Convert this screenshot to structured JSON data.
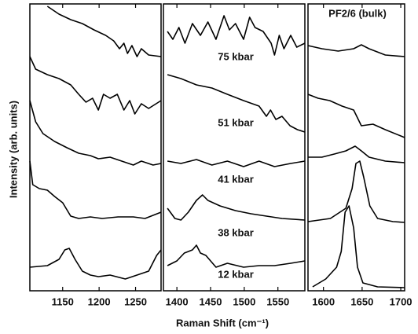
{
  "chart_data": {
    "type": "line",
    "xlabel": "Raman Shift (cm⁻¹)",
    "ylabel": "Intensity (arb. units)",
    "ylim": [
      0,
      365
    ],
    "annotations": [
      "75 kbar",
      "51 kbar",
      "41 kbar",
      "38 kbar",
      "12 kbar",
      "PF2/6 (bulk)"
    ],
    "panels": [
      {
        "xlim": [
          1105,
          1285
        ],
        "xticks": [
          1150,
          1200,
          1250
        ],
        "series": [
          {
            "x": [
              1129,
              1145,
              1161,
              1177,
              1193,
              1209,
              1220,
              1228,
              1234,
              1239,
              1245,
              1252,
              1258,
              1268,
              1285
            ],
            "values": [
              362,
              352,
              345,
              340,
              332,
              325,
              318,
              308,
              315,
              302,
              312,
              298,
              308,
              300,
              298
            ]
          },
          {
            "x": [
              1105,
              1113,
              1129,
              1145,
              1161,
              1172,
              1182,
              1191,
              1199,
              1206,
              1215,
              1225,
              1234,
              1242,
              1249,
              1258,
              1268,
              1285
            ],
            "values": [
              298,
              282,
              275,
              270,
              262,
              250,
              240,
              245,
              230,
              250,
              245,
              250,
              230,
              242,
              225,
              238,
              232,
              242
            ]
          },
          {
            "x": [
              1105,
              1113,
              1123,
              1139,
              1156,
              1172,
              1188,
              1199,
              1215,
              1231,
              1247,
              1258,
              1274,
              1285
            ],
            "values": [
              242,
              215,
              200,
              190,
              182,
              175,
              172,
              168,
              170,
              165,
              160,
              165,
              160,
              162
            ]
          },
          {
            "x": [
              1105,
              1109,
              1118,
              1129,
              1139,
              1150,
              1161,
              1172,
              1188,
              1204,
              1226,
              1247,
              1263,
              1285
            ],
            "values": [
              165,
              135,
              130,
              128,
              120,
              112,
              95,
              92,
              94,
              92,
              94,
              94,
              92,
              100
            ]
          },
          {
            "x": [
              1105,
              1129,
              1145,
              1153,
              1159,
              1167,
              1177,
              1188,
              1199,
              1215,
              1236,
              1252,
              1268,
              1279,
              1285
            ],
            "values": [
              30,
              32,
              40,
              52,
              54,
              40,
              25,
              20,
              18,
              20,
              15,
              20,
              25,
              45,
              52
            ]
          }
        ]
      },
      {
        "xlim": [
          1380,
          1590
        ],
        "xticks": [
          1400,
          1450,
          1500,
          1550
        ],
        "series": [
          {
            "x": [
              1386,
              1394,
              1403,
              1412,
              1423,
              1435,
              1446,
              1458,
              1470,
              1478,
              1487,
              1499,
              1508,
              1516,
              1528,
              1540,
              1545,
              1552,
              1559,
              1569,
              1578,
              1590
            ],
            "values": [
              330,
              320,
              335,
              315,
              340,
              325,
              342,
              320,
              350,
              332,
              340,
              320,
              348,
              335,
              330,
              315,
              300,
              325,
              308,
              325,
              310,
              315
            ]
          },
          {
            "x": [
              1386,
              1406,
              1429,
              1452,
              1475,
              1499,
              1522,
              1533,
              1539,
              1547,
              1556,
              1568,
              1579,
              1590
            ],
            "values": [
              275,
              270,
              262,
              258,
              250,
              242,
              235,
              222,
              230,
              218,
              222,
              210,
              205,
              202
            ]
          },
          {
            "x": [
              1386,
              1406,
              1429,
              1452,
              1475,
              1499,
              1522,
              1545,
              1569,
              1590
            ],
            "values": [
              165,
              162,
              167,
              160,
              165,
              158,
              165,
              158,
              162,
              165
            ]
          },
          {
            "x": [
              1386,
              1397,
              1406,
              1417,
              1429,
              1438,
              1446,
              1464,
              1487,
              1510,
              1533,
              1556,
              1590
            ],
            "values": [
              105,
              92,
              90,
              100,
              115,
              122,
              115,
              108,
              102,
              98,
              95,
              92,
              90
            ]
          },
          {
            "x": [
              1386,
              1400,
              1411,
              1423,
              1429,
              1435,
              1443,
              1458,
              1475,
              1499,
              1522,
              1545,
              1569,
              1590
            ],
            "values": [
              32,
              38,
              48,
              52,
              58,
              48,
              45,
              30,
              35,
              30,
              32,
              32,
              35,
              38
            ]
          }
        ]
      },
      {
        "xlim": [
          1580,
          1705
        ],
        "xticks": [
          1600,
          1650,
          1700
        ],
        "series": [
          {
            "x": [
              1580,
              1598,
              1619,
              1639,
              1649,
              1659,
              1680,
              1705
            ],
            "values": [
              312,
              308,
              305,
              308,
              313,
              308,
              300,
              298
            ]
          },
          {
            "x": [
              1580,
              1593,
              1608,
              1624,
              1639,
              1649,
              1664,
              1680,
              1705
            ],
            "values": [
              250,
              245,
              242,
              235,
              230,
              210,
              212,
              205,
              195
            ]
          },
          {
            "x": [
              1580,
              1598,
              1614,
              1629,
              1641,
              1649,
              1659,
              1680,
              1705
            ],
            "values": [
              170,
              170,
              174,
              178,
              184,
              178,
              170,
              165,
              163
            ]
          },
          {
            "x": [
              1580,
              1609,
              1629,
              1637,
              1642,
              1647,
              1652,
              1660,
              1670,
              1690,
              1705
            ],
            "values": [
              88,
              92,
              105,
              130,
              162,
              165,
              145,
              108,
              92,
              88,
              87
            ]
          },
          {
            "x": [
              1586,
              1603,
              1617,
              1623,
              1628,
              1633,
              1639,
              1644,
              1651,
              1670,
              1705
            ],
            "values": [
              5,
              15,
              30,
              50,
              100,
              108,
              80,
              30,
              10,
              5,
              4
            ]
          }
        ]
      }
    ]
  }
}
